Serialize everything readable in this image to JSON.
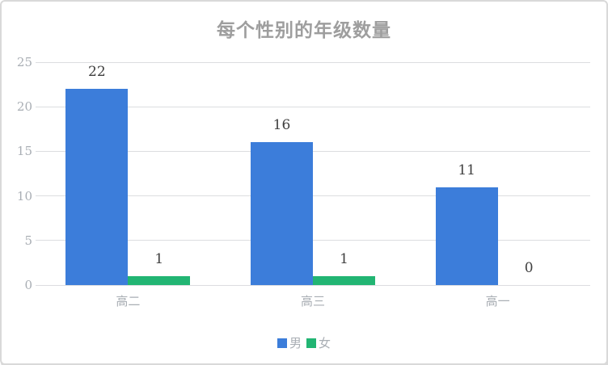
{
  "chart_data": {
    "type": "bar",
    "title": "每个性别的年级数量",
    "categories": [
      "高二",
      "高三",
      "高一"
    ],
    "series": [
      {
        "name": "男",
        "color": "#3c7dda",
        "values": [
          22,
          16,
          11
        ]
      },
      {
        "name": "女",
        "color": "#22b573",
        "values": [
          1,
          1,
          0
        ]
      }
    ],
    "ylim": [
      0,
      25
    ],
    "yticks": [
      0,
      5,
      10,
      15,
      20,
      25
    ],
    "grid": true,
    "data_labels": true,
    "legend_position": "bottom"
  },
  "colors": {
    "title_text": "#9e9e9e",
    "axis_text": "#a9aeb4",
    "gridline": "#dcdde0",
    "data_label_text": "#404040",
    "card_border": "#d9d9d9",
    "background": "#ffffff"
  }
}
